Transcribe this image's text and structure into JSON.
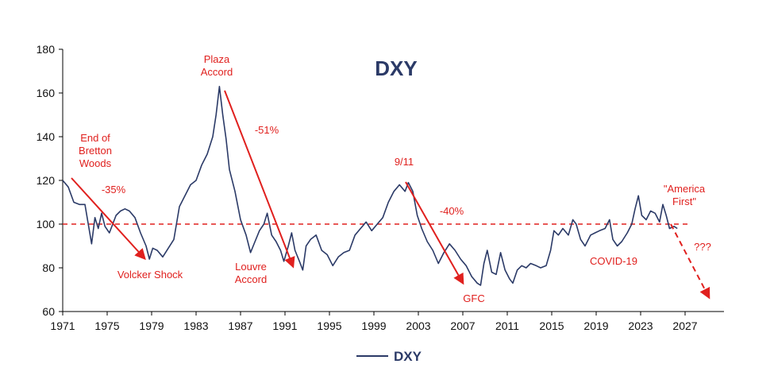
{
  "chart_data": {
    "type": "line",
    "title": "DXY",
    "xlabel": "",
    "ylabel": "",
    "xlim": [
      1971,
      2030.5
    ],
    "ylim": [
      60,
      180
    ],
    "x_ticks": [
      "1971",
      "1975",
      "1979",
      "1983",
      "1987",
      "1991",
      "1995",
      "1999",
      "2003",
      "2007",
      "2011",
      "2015",
      "2019",
      "2023",
      "2027"
    ],
    "y_ticks": [
      "60",
      "80",
      "100",
      "120",
      "140",
      "160",
      "180"
    ],
    "grid": false,
    "legend_position": "bottom-center",
    "colors": {
      "series": "#2b3a67",
      "annotation": "#e0201e",
      "axis": "#000000"
    },
    "reference_line": {
      "y": 100,
      "style": "dashed",
      "color": "#e0201e"
    },
    "series": [
      {
        "name": "DXY",
        "points": [
          [
            1971.0,
            120
          ],
          [
            1971.5,
            117
          ],
          [
            1972.0,
            110
          ],
          [
            1972.5,
            109
          ],
          [
            1973.0,
            109
          ],
          [
            1973.3,
            100
          ],
          [
            1973.6,
            91
          ],
          [
            1973.9,
            103
          ],
          [
            1974.2,
            98
          ],
          [
            1974.5,
            105
          ],
          [
            1974.8,
            99
          ],
          [
            1975.2,
            96
          ],
          [
            1975.5,
            100
          ],
          [
            1975.8,
            104
          ],
          [
            1976.2,
            106
          ],
          [
            1976.6,
            107
          ],
          [
            1977.0,
            106
          ],
          [
            1977.5,
            103
          ],
          [
            1978.0,
            96
          ],
          [
            1978.5,
            90
          ],
          [
            1978.8,
            84
          ],
          [
            1979.1,
            89
          ],
          [
            1979.5,
            88
          ],
          [
            1980.0,
            85
          ],
          [
            1980.5,
            89
          ],
          [
            1981.0,
            93
          ],
          [
            1981.5,
            108
          ],
          [
            1982.0,
            113
          ],
          [
            1982.5,
            118
          ],
          [
            1983.0,
            120
          ],
          [
            1983.5,
            127
          ],
          [
            1984.0,
            132
          ],
          [
            1984.5,
            140
          ],
          [
            1984.8,
            150
          ],
          [
            1985.1,
            163
          ],
          [
            1985.4,
            150
          ],
          [
            1985.7,
            139
          ],
          [
            1986.0,
            125
          ],
          [
            1986.5,
            115
          ],
          [
            1987.0,
            102
          ],
          [
            1987.5,
            95
          ],
          [
            1987.9,
            87
          ],
          [
            1988.3,
            92
          ],
          [
            1988.7,
            97
          ],
          [
            1989.1,
            100
          ],
          [
            1989.4,
            105
          ],
          [
            1989.8,
            95
          ],
          [
            1990.2,
            92
          ],
          [
            1990.6,
            88
          ],
          [
            1990.9,
            83
          ],
          [
            1991.3,
            90
          ],
          [
            1991.6,
            96
          ],
          [
            1991.9,
            88
          ],
          [
            1992.3,
            83
          ],
          [
            1992.6,
            79
          ],
          [
            1992.9,
            90
          ],
          [
            1993.3,
            93
          ],
          [
            1993.8,
            95
          ],
          [
            1994.3,
            88
          ],
          [
            1994.8,
            86
          ],
          [
            1995.3,
            81
          ],
          [
            1995.8,
            85
          ],
          [
            1996.3,
            87
          ],
          [
            1996.8,
            88
          ],
          [
            1997.3,
            95
          ],
          [
            1997.8,
            98
          ],
          [
            1998.3,
            101
          ],
          [
            1998.8,
            97
          ],
          [
            1999.3,
            100
          ],
          [
            1999.8,
            103
          ],
          [
            2000.3,
            110
          ],
          [
            2000.8,
            115
          ],
          [
            2001.3,
            118
          ],
          [
            2001.8,
            115
          ],
          [
            2002.1,
            119
          ],
          [
            2002.5,
            115
          ],
          [
            2002.9,
            104
          ],
          [
            2003.3,
            98
          ],
          [
            2003.8,
            92
          ],
          [
            2004.3,
            88
          ],
          [
            2004.8,
            82
          ],
          [
            2005.3,
            87
          ],
          [
            2005.8,
            91
          ],
          [
            2006.3,
            88
          ],
          [
            2006.8,
            84
          ],
          [
            2007.3,
            81
          ],
          [
            2007.8,
            76
          ],
          [
            2008.3,
            73
          ],
          [
            2008.6,
            72
          ],
          [
            2008.9,
            82
          ],
          [
            2009.2,
            88
          ],
          [
            2009.6,
            78
          ],
          [
            2010.0,
            77
          ],
          [
            2010.4,
            87
          ],
          [
            2010.8,
            79
          ],
          [
            2011.2,
            75
          ],
          [
            2011.5,
            73
          ],
          [
            2011.9,
            79
          ],
          [
            2012.3,
            81
          ],
          [
            2012.7,
            80
          ],
          [
            2013.1,
            82
          ],
          [
            2013.6,
            81
          ],
          [
            2014.0,
            80
          ],
          [
            2014.5,
            81
          ],
          [
            2014.9,
            88
          ],
          [
            2015.2,
            97
          ],
          [
            2015.6,
            95
          ],
          [
            2016.0,
            98
          ],
          [
            2016.5,
            95
          ],
          [
            2016.9,
            102
          ],
          [
            2017.2,
            100
          ],
          [
            2017.6,
            93
          ],
          [
            2018.0,
            90
          ],
          [
            2018.5,
            95
          ],
          [
            2018.9,
            96
          ],
          [
            2019.3,
            97
          ],
          [
            2019.8,
            98
          ],
          [
            2020.2,
            102
          ],
          [
            2020.5,
            93
          ],
          [
            2020.9,
            90
          ],
          [
            2021.3,
            92
          ],
          [
            2021.8,
            96
          ],
          [
            2022.2,
            100
          ],
          [
            2022.5,
            107
          ],
          [
            2022.8,
            113
          ],
          [
            2023.1,
            104
          ],
          [
            2023.5,
            102
          ],
          [
            2023.9,
            106
          ],
          [
            2024.3,
            105
          ],
          [
            2024.7,
            101
          ],
          [
            2025.0,
            109
          ],
          [
            2025.3,
            104
          ],
          [
            2025.6,
            98
          ],
          [
            2026.0,
            99
          ],
          [
            2026.3,
            98
          ]
        ]
      }
    ],
    "annotations": [
      {
        "text": "End of Bretton Woods",
        "lines": [
          "End of",
          "Bretton",
          "Woods"
        ]
      },
      {
        "text": "-35%"
      },
      {
        "text": "Volcker Shock"
      },
      {
        "text": "Plaza Accord",
        "lines": [
          "Plaza",
          "Accord"
        ]
      },
      {
        "text": "-51%"
      },
      {
        "text": "Louvre Accord",
        "lines": [
          "Louvre",
          "Accord"
        ]
      },
      {
        "text": "9/11"
      },
      {
        "text": "-40%"
      },
      {
        "text": "GFC"
      },
      {
        "text": "COVID-19"
      },
      {
        "text": "\"America First\"",
        "lines": [
          "\"America",
          "First\""
        ]
      },
      {
        "text": "???"
      }
    ]
  }
}
